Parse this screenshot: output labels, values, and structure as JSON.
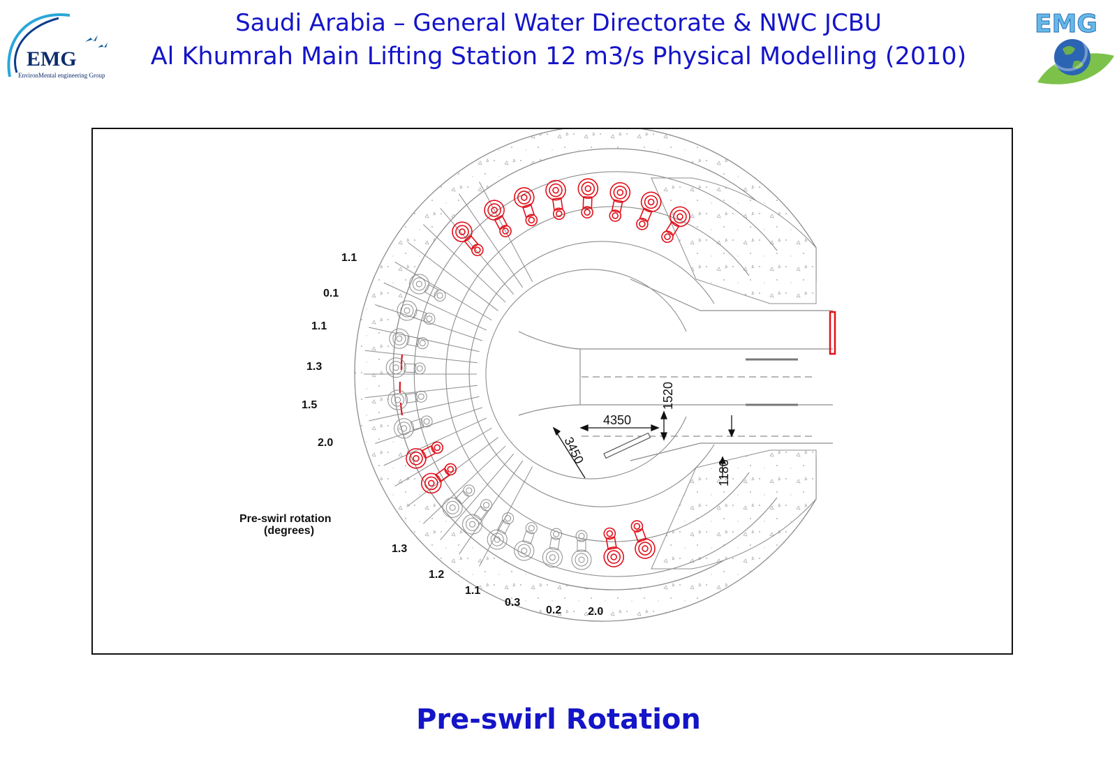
{
  "header": {
    "title_line_1": "Saudi Arabia – General Water Directorate & NWC JCBU",
    "title_line_2": "Al Khumrah Main Lifting Station 12 m3/s Physical Modelling  (2010)"
  },
  "logo_left": {
    "text": "EMG",
    "subtext": "EnvironMental engineering Group"
  },
  "logo_right": {
    "text": "EMG"
  },
  "diagram": {
    "legend_line_1": "Pre-swirl rotation",
    "legend_line_2": "(degrees)",
    "pump_labels": [
      "1.1",
      "0.1",
      "1.1",
      "1.3",
      "1.5",
      "2.0",
      "1.3",
      "1.2",
      "1.1",
      "0.3",
      "0.2",
      "2.0"
    ],
    "dimensions": [
      "1520",
      "4350",
      "3450",
      "1180"
    ],
    "colors": {
      "highlight": "#e0101a",
      "line": "#8c8c8c",
      "title": "#1414c8"
    }
  },
  "caption": "Pre-swirl Rotation"
}
